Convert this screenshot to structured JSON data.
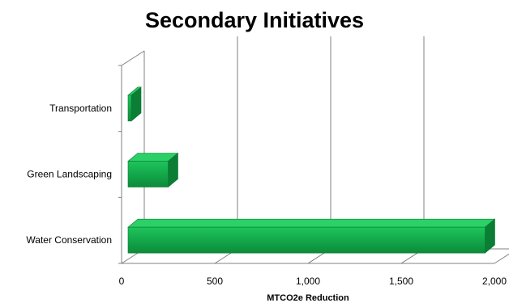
{
  "chart_data": {
    "type": "bar",
    "orientation": "horizontal",
    "title": "Secondary Initiatives",
    "xlabel": "MTCO2e Reduction",
    "ylabel": "",
    "categories": [
      "Transportation",
      "Green Landscaping",
      "Water Conservation"
    ],
    "values": [
      20,
      250,
      1950
    ],
    "xlim": [
      0,
      2000
    ],
    "xticks": [
      "0",
      "500",
      "1,000",
      "1,500",
      "2,000"
    ],
    "grid": true,
    "legend": "none",
    "three_d": true,
    "bar_color": "#13a84a"
  }
}
